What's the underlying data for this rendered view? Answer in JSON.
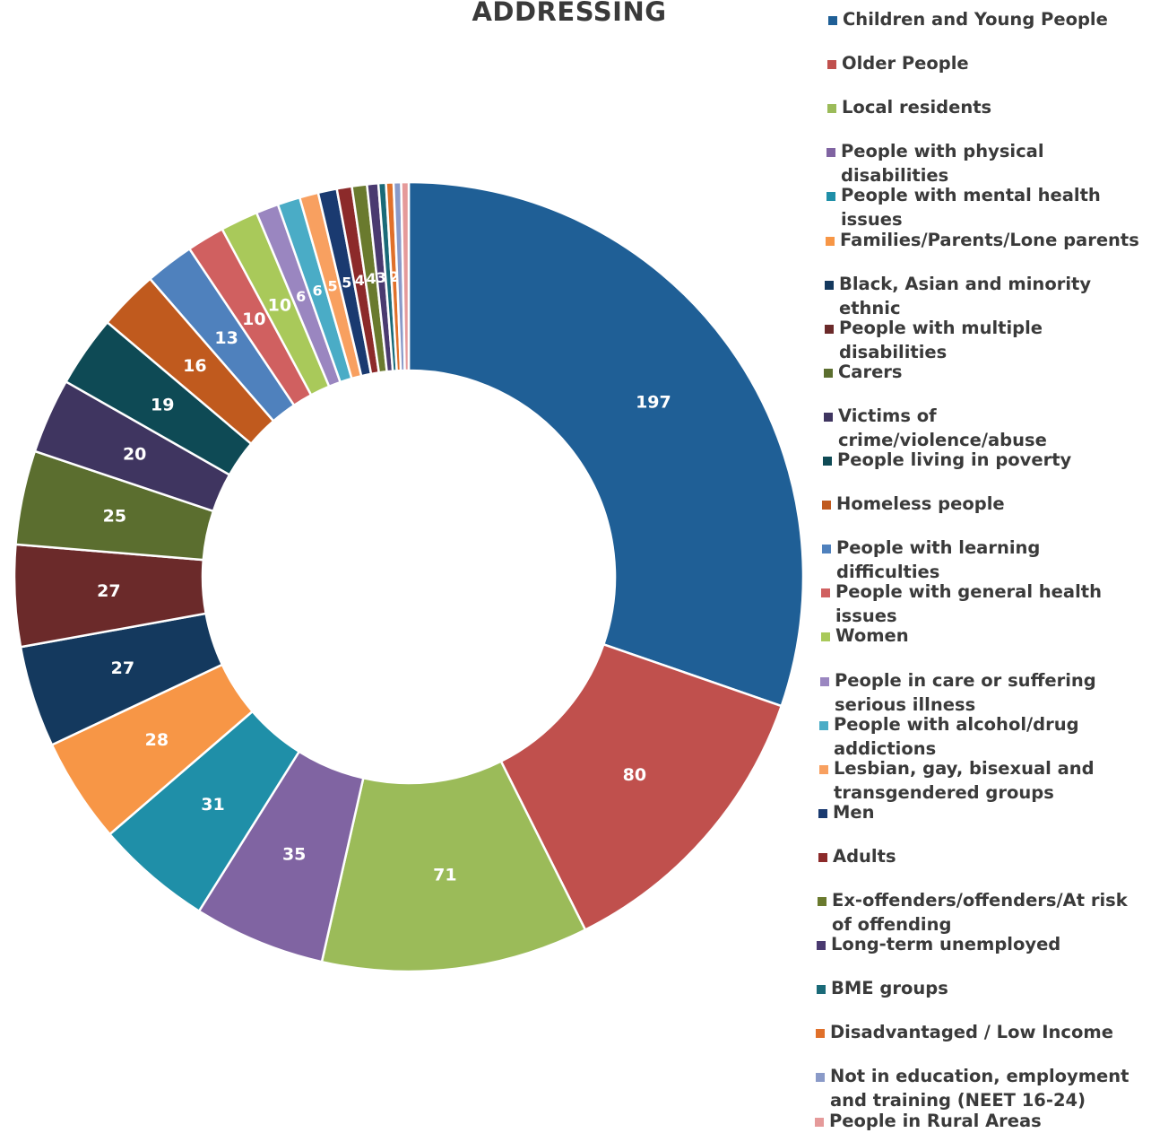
{
  "chart_data": {
    "type": "pie",
    "style": "donut",
    "title": "ADDRESSING",
    "legend_position": "right",
    "categories": [
      "Children and Young People",
      "Older People",
      "Local residents",
      "People with physical disabilities",
      "People with mental health issues",
      "Families/Parents/Lone parents",
      "Black, Asian and minority ethnic",
      "People with multiple disabilities",
      "Carers",
      "Victims of crime/violence/abuse",
      "People living in poverty",
      "Homeless people",
      "People with learning difficulties",
      "People with general health issues",
      "Women",
      "People in care or suffering serious illness",
      "People with alcohol/drug addictions",
      "Lesbian, gay, bisexual and transgendered groups",
      "Men",
      "Adults",
      "Ex-offenders/offenders/At risk of offending",
      "Long-term unemployed",
      "BME groups",
      "Disadvantaged / Low Income",
      "Not in education, employment and training (NEET 16-24)",
      "People in Rural Areas"
    ],
    "values": [
      197,
      80,
      71,
      35,
      31,
      28,
      27,
      27,
      25,
      20,
      19,
      16,
      13,
      10,
      10,
      6,
      6,
      5,
      5,
      4,
      4,
      3,
      2,
      2,
      2,
      2
    ],
    "data_labels": [
      "197",
      "80",
      "71",
      "35",
      "31",
      "28",
      "27",
      "27",
      "25",
      "20",
      "19",
      "16",
      "13",
      "10",
      "10",
      "6",
      "6",
      "5",
      "5",
      "4",
      "4",
      "3",
      "",
      "2",
      "",
      ""
    ],
    "colors": [
      "#1f5f96",
      "#c0504d",
      "#9bbb59",
      "#8064a2",
      "#1f8fa8",
      "#f79646",
      "#14395e",
      "#6b2a2a",
      "#5b6e2f",
      "#3f3560",
      "#0e4a55",
      "#c05a1e",
      "#4f81bd",
      "#d06060",
      "#a9c95a",
      "#9a86c0",
      "#4aacc6",
      "#f8a060",
      "#1a3a70",
      "#8c2a2a",
      "#6a7a2e",
      "#4a3a70",
      "#1a6a78",
      "#e0702a",
      "#8a9ac8",
      "#e59a9a"
    ]
  }
}
